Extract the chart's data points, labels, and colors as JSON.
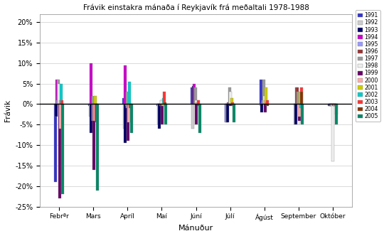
{
  "title": "Frávik einstakra mánaða í Reykjavík frá meðaltali 1978-1988",
  "xlabel": "Mánuður",
  "ylabel": "Frávik",
  "months": [
    "Febrªr",
    "Mars",
    "Apríl",
    "Maí",
    "Júní",
    "Júlí",
    "Ágúst",
    "September",
    "Október"
  ],
  "years": [
    "1991",
    "1992",
    "1993",
    "1994",
    "1995",
    "1996",
    "1997",
    "1998",
    "1999",
    "2000",
    "2001",
    "2002",
    "2003",
    "2004",
    "2005"
  ],
  "colors": {
    "1991": "#3333CC",
    "1992": "#CCCCCC",
    "1993": "#000066",
    "1994": "#CC00CC",
    "1995": "#9999FF",
    "1996": "#993333",
    "1997": "#999999",
    "1998": "#EEEEEE",
    "1999": "#660066",
    "2000": "#FFAAAA",
    "2001": "#CCCC00",
    "2002": "#00CCCC",
    "2003": "#FF3333",
    "2004": "#883300",
    "2005": "#008866"
  },
  "data": {
    "1991": [
      -19,
      -0.5,
      1.5,
      -0.5,
      4.0,
      -4.5,
      6.0,
      -0.5,
      -0.5
    ],
    "1992": [
      -1,
      -3,
      -6,
      -5,
      -6,
      -4.5,
      -0.5,
      -5,
      -0.5
    ],
    "1993": [
      -3,
      -7,
      -9.5,
      -6,
      4.5,
      -4.5,
      -2,
      -5,
      -0.5
    ],
    "1994": [
      6,
      10,
      9.5,
      0,
      5.0,
      0.5,
      0.5,
      4.0,
      -0.5
    ],
    "1995": [
      1,
      0,
      0,
      0,
      0,
      0,
      1,
      3,
      -0.5
    ],
    "1996": [
      2,
      1,
      -0.5,
      -0.5,
      1,
      0.5,
      0,
      4,
      -0.5
    ],
    "1997": [
      6,
      2,
      3,
      1,
      4,
      4,
      6,
      3,
      -0.5
    ],
    "1998": [
      5,
      -4,
      -1,
      1,
      1,
      3,
      2,
      -5,
      -14
    ],
    "1999": [
      -23,
      -16,
      -9,
      -5,
      -5,
      -0.5,
      -2,
      -4,
      -0.5
    ],
    "2000": [
      -6,
      -4,
      -4.5,
      -0.5,
      0.5,
      0,
      1,
      -3,
      -0.5
    ],
    "2001": [
      1,
      2,
      -0.5,
      -0.5,
      0,
      1.5,
      4,
      3,
      -0.5
    ],
    "2002": [
      5,
      0,
      5.5,
      1.5,
      0,
      0,
      0.5,
      -1,
      -0.5
    ],
    "2003": [
      1,
      -4,
      -1,
      3,
      1,
      0.5,
      1,
      4,
      -0.5
    ],
    "2004": [
      0,
      -4.5,
      -1,
      0.5,
      -0.5,
      -0.5,
      -0.5,
      3,
      -2.5
    ],
    "2005": [
      -22,
      -21,
      -7,
      -5,
      -7,
      -4.5,
      0,
      -5,
      -5
    ]
  },
  "ylim": [
    -25,
    22
  ],
  "yticks": [
    -25,
    -20,
    -15,
    -10,
    -5,
    0,
    5,
    10,
    15,
    20
  ],
  "figsize": [
    5.4,
    3.32
  ],
  "dpi": 100
}
